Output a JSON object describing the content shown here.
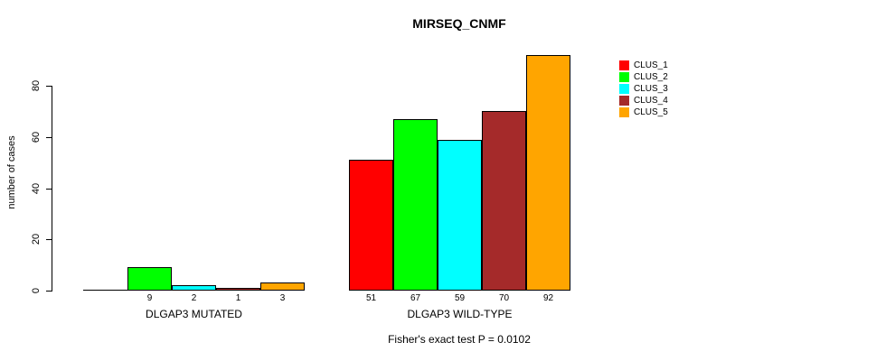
{
  "chart_data": {
    "type": "bar",
    "title": "MIRSEQ_CNMF",
    "ylabel": "number of cases",
    "xlabel": "",
    "yticks": [
      0,
      20,
      40,
      60,
      80
    ],
    "ylim": [
      0,
      92
    ],
    "grid": false,
    "legend_position": "right",
    "background_color": "#ffffff",
    "text_color": "#000000",
    "categories": [
      "DLGAP3 MUTATED",
      "DLGAP3 WILD-TYPE"
    ],
    "series": [
      {
        "name": "CLUS_1",
        "color": "#ff0000",
        "values": [
          0,
          51
        ]
      },
      {
        "name": "CLUS_2",
        "color": "#00ff00",
        "values": [
          9,
          67
        ]
      },
      {
        "name": "CLUS_3",
        "color": "#00ffff",
        "values": [
          2,
          59
        ]
      },
      {
        "name": "CLUS_4",
        "color": "#a52a2a",
        "values": [
          1,
          70
        ]
      },
      {
        "name": "CLUS_5",
        "color": "#ffa500",
        "values": [
          3,
          92
        ]
      }
    ],
    "value_labels": {
      "show": true,
      "hide_zero": true
    },
    "annotation": "Fisher's exact test P = 0.0102"
  }
}
